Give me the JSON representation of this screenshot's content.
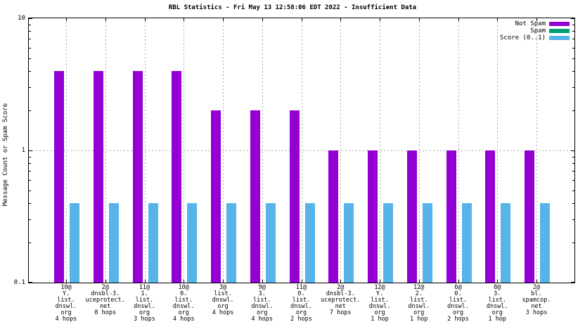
{
  "chart_data": {
    "type": "bar",
    "title": "RBL Statistics - Fri May 13 12:58:06 EDT 2022 - Insufficient Data",
    "ylabel": "Message Count or Spam Score",
    "xlabel": "",
    "y_scale": "log",
    "ylim": [
      0.1,
      10
    ],
    "y_major_ticks": [
      {
        "label": "10",
        "value": 10
      },
      {
        "label": "1",
        "value": 1
      },
      {
        "label": "0.1",
        "value": 0.1
      }
    ],
    "grid": {
      "vertical": "dashed at each category",
      "horizontal": "dashed at y=1"
    },
    "legend_position": "top-right-inside",
    "categories": [
      [
        "10@",
        "Y.",
        "list.",
        "dnswl.",
        "org",
        "4 hops"
      ],
      [
        "2@",
        "dnsbl-3.",
        "uceprotect.",
        "net",
        "8 hops"
      ],
      [
        "11@",
        "1.",
        "list.",
        "dnswl.",
        "org",
        "3 hops"
      ],
      [
        "10@",
        "0.",
        "list.",
        "dnswl.",
        "org",
        "4 hops"
      ],
      [
        "3@",
        "list.",
        "dnswl.",
        "org",
        "4 hops"
      ],
      [
        "9@",
        "3.",
        "list.",
        "dnswl.",
        "org",
        "4 hops"
      ],
      [
        "11@",
        "0.",
        "list.",
        "dnswl.",
        "org",
        "2 hops"
      ],
      [
        "2@",
        "dnsbl-3.",
        "uceprotect.",
        "net",
        "7 hops"
      ],
      [
        "12@",
        "Y.",
        "list.",
        "dnswl.",
        "org",
        "1 hop"
      ],
      [
        "12@",
        "2.",
        "list.",
        "dnswl.",
        "org",
        "1 hop"
      ],
      [
        "6@",
        "0.",
        "list.",
        "dnswl.",
        "org",
        "2 hops"
      ],
      [
        "8@",
        "3.",
        "list.",
        "dnswl.",
        "org",
        "1 hop"
      ],
      [
        "2@",
        "bl.",
        "spamcop.",
        "net",
        "3 hops"
      ]
    ],
    "series": [
      {
        "name": "Not Spam",
        "color": "#9400d3",
        "values": [
          4,
          4,
          4,
          4,
          2,
          2,
          2,
          1,
          1,
          1,
          1,
          1,
          1
        ]
      },
      {
        "name": "Spam",
        "color": "#009e73",
        "values": [
          0,
          0,
          0,
          0,
          0,
          0,
          0,
          0,
          0,
          0,
          0,
          0,
          0
        ]
      },
      {
        "name": "Score (0..1)",
        "color": "#56b4e9",
        "values": [
          0.4,
          0.4,
          0.4,
          0.4,
          0.4,
          0.4,
          0.4,
          0.4,
          0.4,
          0.4,
          0.4,
          0.4,
          0.4
        ]
      }
    ],
    "colors": {
      "grid": "#a9a9a9",
      "axis": "#000000",
      "background": "#ffffff"
    }
  }
}
